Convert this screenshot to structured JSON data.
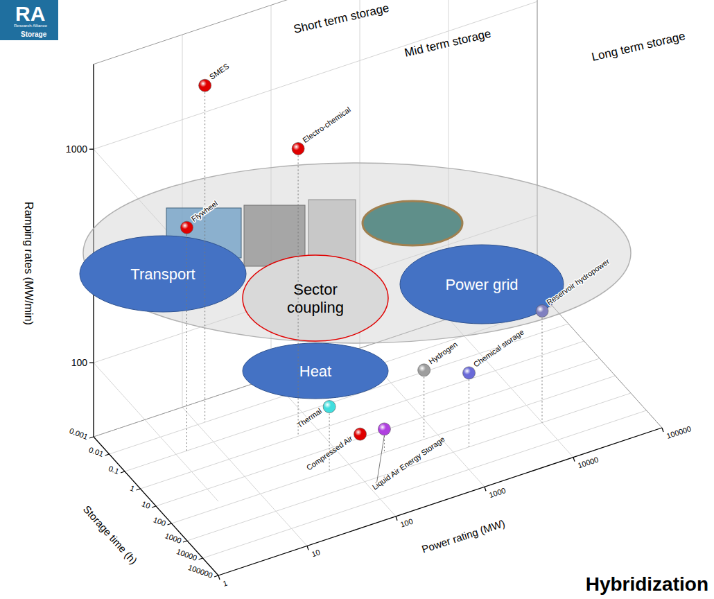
{
  "logo": {
    "title": "RA",
    "subtitle": "Research Alliance",
    "caption": "Storage"
  },
  "chart_data": {
    "type": "scatter3d",
    "x_label": "Storage time (h)",
    "y_label": "Ramping rates (MW/min)",
    "z_label": "Power rating (MW)",
    "log": true,
    "grid": true,
    "xlim": [
      0.001,
      100000
    ],
    "xticks": [
      0.001,
      0.01,
      0.1,
      1,
      10,
      100,
      1000,
      10000,
      100000
    ],
    "ylim": [
      45,
      2500
    ],
    "yticks": [
      100,
      1000
    ],
    "zlim": [
      1,
      100000
    ],
    "zticks": [
      1,
      10,
      100,
      1000,
      10000,
      100000
    ],
    "points": [
      {
        "label": "SMES",
        "x": 0.01,
        "y": 1700,
        "z": 12,
        "color": "#e00000"
      },
      {
        "label": "Electro-chemical",
        "x": 1,
        "y": 1000,
        "z": 60,
        "color": "#e00000"
      },
      {
        "label": "Flywheel",
        "x": 0.1,
        "y": 500,
        "z": 5,
        "color": "#e00000"
      },
      {
        "label": "Hydrogen",
        "x": 100,
        "y": 95,
        "z": 700,
        "color": "#9e9e9e"
      },
      {
        "label": "Chemical storage",
        "x": 1000,
        "y": 100,
        "z": 1500,
        "color": "#6a6ad8"
      },
      {
        "label": "Reservoir hydropower",
        "x": 1000,
        "y": 150,
        "z": 10000,
        "color": "#8080c0"
      },
      {
        "label": "Compressed Air",
        "x": 10,
        "y": 47,
        "z": 200,
        "color": "#e00000"
      },
      {
        "label": "Thermal",
        "x": 100,
        "y": 90,
        "z": 60,
        "color": "#40dede"
      },
      {
        "label": "Liquid Air Energy Storage",
        "x": 100,
        "y": 58,
        "z": 250,
        "color": "#b040e0"
      }
    ],
    "annotations": [
      "Short term storage",
      "Mid term storage",
      "Long term storage"
    ]
  },
  "overlay": {
    "sectors": [
      "Transport",
      "Power grid",
      "Heat"
    ],
    "center": "Sector coupling"
  },
  "footer": "Hybridization"
}
